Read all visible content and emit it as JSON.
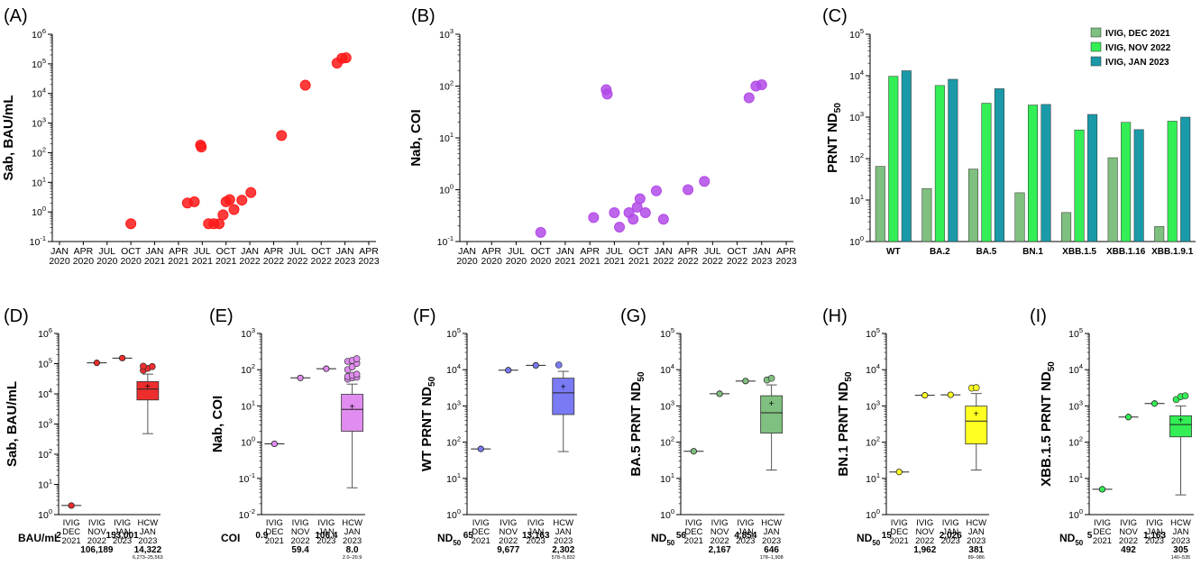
{
  "colors": {
    "dec2021": "#7fbf7f",
    "nov2022": "#33ee55",
    "jan2023": "#1a9aa8",
    "red": "#ff1a1a",
    "purple": "#b24ae8"
  },
  "chart_data": [
    {
      "panel": "(A)",
      "type": "scatter",
      "ylabel": "Sab, BAU/mL",
      "yscale": "log",
      "ylim": [
        0.1,
        1000000
      ],
      "yticks": [
        {
          "b": "10",
          "e": "-1"
        },
        {
          "b": "10",
          "e": "0"
        },
        {
          "b": "10",
          "e": "1"
        },
        {
          "b": "10",
          "e": "2"
        },
        {
          "b": "10",
          "e": "3"
        },
        {
          "b": "10",
          "e": "4"
        },
        {
          "b": "10",
          "e": "5"
        },
        {
          "b": "10",
          "e": "6"
        }
      ],
      "xticks": [
        "JAN\n2020",
        "APR\n2020",
        "JUL\n2020",
        "OCT\n2020",
        "JAN\n2021",
        "APR\n2021",
        "JUL\n2021",
        "OCT\n2021",
        "JAN\n2022",
        "APR\n2022",
        "JUL\n2022",
        "OCT\n2022",
        "JAN\n2023",
        "APR\n2023"
      ],
      "color": "#ff1a1a",
      "points": [
        {
          "x": "2020-10-01",
          "y": 0.4
        },
        {
          "x": "2021-05-05",
          "y": 2.0
        },
        {
          "x": "2021-06-01",
          "y": 2.2
        },
        {
          "x": "2021-06-25",
          "y": 180
        },
        {
          "x": "2021-06-28",
          "y": 155
        },
        {
          "x": "2021-07-25",
          "y": 0.4
        },
        {
          "x": "2021-08-15",
          "y": 0.4
        },
        {
          "x": "2021-09-05",
          "y": 0.4
        },
        {
          "x": "2021-09-20",
          "y": 0.8
        },
        {
          "x": "2021-10-01",
          "y": 2.2
        },
        {
          "x": "2021-10-15",
          "y": 2.6
        },
        {
          "x": "2021-11-01",
          "y": 1.2
        },
        {
          "x": "2021-12-01",
          "y": 2.5
        },
        {
          "x": "2022-01-05",
          "y": 4.5
        },
        {
          "x": "2022-05-01",
          "y": 380
        },
        {
          "x": "2022-08-01",
          "y": 19000
        },
        {
          "x": "2022-12-01",
          "y": 106189
        },
        {
          "x": "2022-12-20",
          "y": 153001
        },
        {
          "x": "2023-01-05",
          "y": 160000
        }
      ]
    },
    {
      "panel": "(B)",
      "type": "scatter",
      "ylabel": "Nab, COI",
      "yscale": "log",
      "ylim": [
        0.1,
        1000
      ],
      "yticks": [
        {
          "b": "10",
          "e": "-1"
        },
        {
          "b": "10",
          "e": "0"
        },
        {
          "b": "10",
          "e": "1"
        },
        {
          "b": "10",
          "e": "2"
        },
        {
          "b": "10",
          "e": "3"
        }
      ],
      "xticks": [
        "JAN\n2020",
        "APR\n2020",
        "JUL\n2020",
        "OCT\n2020",
        "JAN\n2021",
        "APR\n2021",
        "JUL\n2021",
        "OCT\n2021",
        "JAN\n2022",
        "APR\n2022",
        "JUL\n2022",
        "OCT\n2022",
        "JAN\n2023",
        "APR\n2023"
      ],
      "color": "#b24ae8",
      "points": [
        {
          "x": "2020-10-01",
          "y": 0.15
        },
        {
          "x": "2021-04-15",
          "y": 0.29
        },
        {
          "x": "2021-06-01",
          "y": 85
        },
        {
          "x": "2021-06-05",
          "y": 70
        },
        {
          "x": "2021-07-01",
          "y": 0.36
        },
        {
          "x": "2021-07-20",
          "y": 0.19
        },
        {
          "x": "2021-08-25",
          "y": 0.36
        },
        {
          "x": "2021-09-10",
          "y": 0.27
        },
        {
          "x": "2021-09-25",
          "y": 0.46
        },
        {
          "x": "2021-10-05",
          "y": 0.67
        },
        {
          "x": "2021-10-25",
          "y": 0.36
        },
        {
          "x": "2021-12-05",
          "y": 0.95
        },
        {
          "x": "2022-01-01",
          "y": 0.27
        },
        {
          "x": "2022-04-01",
          "y": 1.0
        },
        {
          "x": "2022-06-01",
          "y": 1.45
        },
        {
          "x": "2022-11-15",
          "y": 59.4
        },
        {
          "x": "2022-12-10",
          "y": 100
        },
        {
          "x": "2023-01-01",
          "y": 106.4
        }
      ]
    },
    {
      "panel": "(C)",
      "type": "bar",
      "ylabel_main": "PRNT  ND",
      "ylabel_sub": "50",
      "yscale": "log",
      "ylim": [
        1,
        100000
      ],
      "yticks": [
        {
          "b": "10",
          "e": "0"
        },
        {
          "b": "10",
          "e": "1"
        },
        {
          "b": "10",
          "e": "2"
        },
        {
          "b": "10",
          "e": "3"
        },
        {
          "b": "10",
          "e": "4"
        },
        {
          "b": "10",
          "e": "5"
        }
      ],
      "categories": [
        "WT",
        "BA.2",
        "BA.5",
        "BN.1",
        "XBB.1.5",
        "XBB.1.16",
        "XBB.1.9.1"
      ],
      "series": [
        {
          "name": "IVIG, DEC 2021",
          "color": "#7fbf7f",
          "values": [
            65,
            19,
            56,
            15,
            5,
            105,
            2.3
          ]
        },
        {
          "name": "IVIG, NOV 2022",
          "color": "#33ee55",
          "values": [
            9677,
            5800,
            2167,
            1962,
            492,
            750,
            800
          ]
        },
        {
          "name": "IVIG, JAN 2023",
          "color": "#1a9aa8",
          "values": [
            13163,
            8200,
            4854,
            2026,
            1163,
            500,
            1000
          ]
        }
      ],
      "legend": "top-right"
    },
    {
      "panel": "(D)",
      "type": "box",
      "ylabel": "Sab, BAU/mL",
      "yscale": "log",
      "ylim": [
        1,
        1000000
      ],
      "yticks": [
        {
          "b": "10",
          "e": "0"
        },
        {
          "b": "10",
          "e": "1"
        },
        {
          "b": "10",
          "e": "2"
        },
        {
          "b": "10",
          "e": "3"
        },
        {
          "b": "10",
          "e": "4"
        },
        {
          "b": "10",
          "e": "5"
        },
        {
          "b": "10",
          "e": "6"
        }
      ],
      "categories": [
        "IVIG\nDEC\n2021",
        "IVIG\nNOV\n2022",
        "IVIG\nJAN\n2023",
        "HCW\nJAN\n2023"
      ],
      "color": "#ee2d2d",
      "points": [
        2,
        106189,
        153001
      ],
      "box": {
        "whisker_low": 480,
        "q1": 6273,
        "median": 14322,
        "q3": 25563,
        "whisker_high": 45000,
        "mean": 17500,
        "outliers": [
          60000,
          70000,
          80000,
          82000
        ]
      },
      "footer_label": "BAU/mL",
      "footer_values": [
        "2",
        "106,189",
        "153,001",
        "14,322"
      ],
      "footer_ci": "6,273–25,563"
    },
    {
      "panel": "(E)",
      "type": "box",
      "ylabel": "Nab, COI",
      "yscale": "log",
      "ylim": [
        0.01,
        1000
      ],
      "yticks": [
        {
          "b": "10",
          "e": "-2"
        },
        {
          "b": "10",
          "e": "-1"
        },
        {
          "b": "10",
          "e": "0"
        },
        {
          "b": "10",
          "e": "1"
        },
        {
          "b": "10",
          "e": "2"
        },
        {
          "b": "10",
          "e": "3"
        }
      ],
      "categories": [
        "IVIG\nDEC\n2021",
        "IVIG\nNOV\n2022",
        "IVIG\nJAN\n2023",
        "HCW\nJAN\n2023"
      ],
      "color": "#e08cf0",
      "points": [
        0.9,
        59.4,
        106.4
      ],
      "box": {
        "whisker_low": 0.055,
        "q1": 2.0,
        "median": 8.0,
        "q3": 20.9,
        "whisker_high": 40,
        "mean": 9.5,
        "outliers": [
          55,
          60,
          62,
          65,
          70,
          75,
          100,
          120,
          150,
          170,
          180,
          200
        ]
      },
      "footer_label": "COI",
      "footer_values": [
        "0.9",
        "59.4",
        "106.4",
        "8.0"
      ],
      "footer_ci": "2.0–20.9"
    },
    {
      "panel": "(F)",
      "type": "box",
      "ylabel_main": "WT PRNT  ND",
      "ylabel_sub": "50",
      "yscale": "log",
      "ylim": [
        1,
        100000
      ],
      "yticks": [
        {
          "b": "10",
          "e": "0"
        },
        {
          "b": "10",
          "e": "1"
        },
        {
          "b": "10",
          "e": "2"
        },
        {
          "b": "10",
          "e": "3"
        },
        {
          "b": "10",
          "e": "4"
        },
        {
          "b": "10",
          "e": "5"
        }
      ],
      "categories": [
        "IVIG\nDEC\n2021",
        "IVIG\nNOV\n2022",
        "IVIG\nJAN\n2023",
        "HCW\nJAN\n2023"
      ],
      "color": "#7a7af5",
      "points": [
        65,
        9677,
        13163
      ],
      "box": {
        "whisker_low": 55,
        "q1": 578,
        "median": 2302,
        "q3": 5832,
        "whisker_high": 9000,
        "mean": 3300,
        "outliers": [
          13500
        ]
      },
      "footer_label_main": "ND",
      "footer_label_sub": "50",
      "footer_values": [
        "65",
        "9,677",
        "13,163",
        "2,302"
      ],
      "footer_ci": "578–5,832"
    },
    {
      "panel": "(G)",
      "type": "box",
      "ylabel_main": "BA.5 PRNT  ND",
      "ylabel_sub": "50",
      "yscale": "log",
      "ylim": [
        1,
        100000
      ],
      "yticks": [
        {
          "b": "10",
          "e": "0"
        },
        {
          "b": "10",
          "e": "1"
        },
        {
          "b": "10",
          "e": "2"
        },
        {
          "b": "10",
          "e": "3"
        },
        {
          "b": "10",
          "e": "4"
        },
        {
          "b": "10",
          "e": "5"
        }
      ],
      "categories": [
        "IVIG\nDEC\n2021",
        "IVIG\nNOV\n2022",
        "IVIG\nJAN\n2023",
        "HCW\nJAN\n2023"
      ],
      "color": "#7fbf7f",
      "points": [
        56,
        2167,
        4854
      ],
      "box": {
        "whisker_low": 17,
        "q1": 178,
        "median": 646,
        "q3": 1908,
        "whisker_high": 3800,
        "mean": 1150,
        "outliers": [
          5200,
          5800
        ]
      },
      "footer_label_main": "ND",
      "footer_label_sub": "50",
      "footer_values": [
        "56",
        "2,167",
        "4,854",
        "646"
      ],
      "footer_ci": "178–1,908"
    },
    {
      "panel": "(H)",
      "type": "box",
      "ylabel_main": "BN.1 PRNT  ND",
      "ylabel_sub": "50",
      "yscale": "log",
      "ylim": [
        1,
        100000
      ],
      "yticks": [
        {
          "b": "10",
          "e": "0"
        },
        {
          "b": "10",
          "e": "1"
        },
        {
          "b": "10",
          "e": "2"
        },
        {
          "b": "10",
          "e": "3"
        },
        {
          "b": "10",
          "e": "4"
        },
        {
          "b": "10",
          "e": "5"
        }
      ],
      "categories": [
        "IVIG\nDEC\n2021",
        "IVIG\nNOV\n2022",
        "IVIG\nJAN\n2023",
        "HCW\nJAN\n2023"
      ],
      "color": "#ffff22",
      "points": [
        15,
        1962,
        2026
      ],
      "box": {
        "whisker_low": 17,
        "q1": 89,
        "median": 381,
        "q3": 986,
        "whisker_high": 2200,
        "mean": 600,
        "outliers": [
          3100,
          3200
        ]
      },
      "footer_label_main": "ND",
      "footer_label_sub": "50",
      "footer_values": [
        "15",
        "1,962",
        "2,026",
        "381"
      ],
      "footer_ci": "89–986"
    },
    {
      "panel": "(I)",
      "type": "box",
      "ylabel_main": "XBB.1.5 PRNT  ND",
      "ylabel_sub": "50",
      "yscale": "log",
      "ylim": [
        1,
        100000
      ],
      "yticks": [
        {
          "b": "10",
          "e": "0"
        },
        {
          "b": "10",
          "e": "1"
        },
        {
          "b": "10",
          "e": "2"
        },
        {
          "b": "10",
          "e": "3"
        },
        {
          "b": "10",
          "e": "4"
        },
        {
          "b": "10",
          "e": "5"
        }
      ],
      "categories": [
        "IVIG\nDEC\n2021",
        "IVIG\nNOV\n2022",
        "IVIG\nJAN\n2023",
        "HCW\nJAN\n2023"
      ],
      "color": "#33ee55",
      "points": [
        5,
        492,
        1163
      ],
      "box": {
        "whisker_low": 3.5,
        "q1": 140,
        "median": 305,
        "q3": 535,
        "whisker_high": 1000,
        "mean": 400,
        "outliers": [
          1500,
          1800,
          1900
        ]
      },
      "footer_label_main": "ND",
      "footer_label_sub": "50",
      "footer_values": [
        "5",
        "492",
        "1,163",
        "305"
      ],
      "footer_ci": "140–535"
    }
  ]
}
